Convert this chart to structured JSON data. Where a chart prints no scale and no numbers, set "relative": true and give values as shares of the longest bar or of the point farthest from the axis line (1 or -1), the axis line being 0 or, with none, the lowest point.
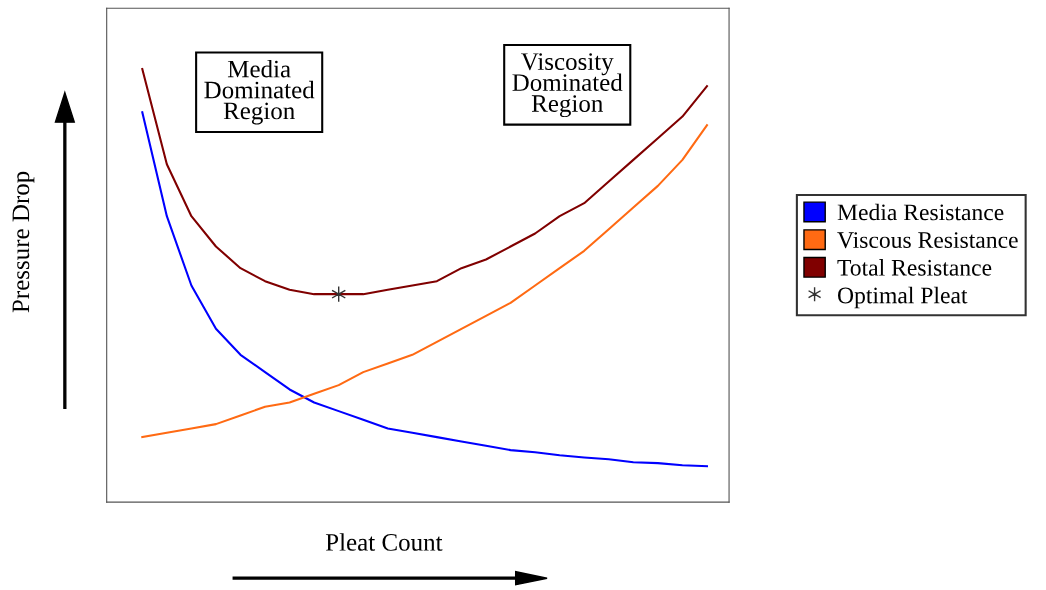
{
  "chart_data": {
    "type": "line",
    "relative": true,
    "xlabel": "Pleat Count",
    "ylabel": "Pressure Drop",
    "legend": "right",
    "annotations": [
      "Media\nDominated\nRegion",
      "Viscosity\nDominated\nRegion"
    ],
    "categories": [
      null,
      null,
      null,
      null,
      null,
      null,
      null,
      null,
      null,
      null,
      null,
      null,
      null,
      null,
      null,
      null,
      null,
      null,
      null,
      null,
      null,
      null,
      null,
      null
    ],
    "series": [
      {
        "name": "Media Resistance",
        "color": "#0000ff",
        "values": [
          0.9,
          0.66,
          0.5,
          0.4,
          0.34,
          0.3,
          0.26,
          0.23,
          0.21,
          0.19,
          0.17,
          0.16,
          0.15,
          0.14,
          0.13,
          0.12,
          0.115,
          0.108,
          0.103,
          0.099,
          0.092,
          0.09,
          0.085,
          0.083
        ]
      },
      {
        "name": "Viscous Resistance",
        "color": "#ff6a13",
        "values": [
          0.15,
          0.16,
          0.17,
          0.18,
          0.2,
          0.22,
          0.23,
          0.25,
          0.27,
          0.3,
          0.32,
          0.34,
          0.37,
          0.4,
          0.43,
          0.46,
          0.5,
          0.54,
          0.58,
          0.63,
          0.68,
          0.73,
          0.79,
          0.87
        ]
      },
      {
        "name": "Total Resistance",
        "color": "#800000",
        "values": [
          1.0,
          0.78,
          0.66,
          0.59,
          0.54,
          0.51,
          0.49,
          0.48,
          0.48,
          0.48,
          0.49,
          0.5,
          0.51,
          0.54,
          0.56,
          0.59,
          0.62,
          0.66,
          0.69,
          0.74,
          0.79,
          0.84,
          0.89,
          0.96
        ]
      },
      {
        "name": "Optimal Pleat",
        "marker": "cross",
        "color": "#333333",
        "values": [
          null,
          null,
          null,
          null,
          null,
          null,
          null,
          null,
          0.48,
          null,
          null,
          null,
          null,
          null,
          null,
          null,
          null,
          null,
          null,
          null,
          null,
          null,
          null,
          null
        ]
      }
    ]
  }
}
